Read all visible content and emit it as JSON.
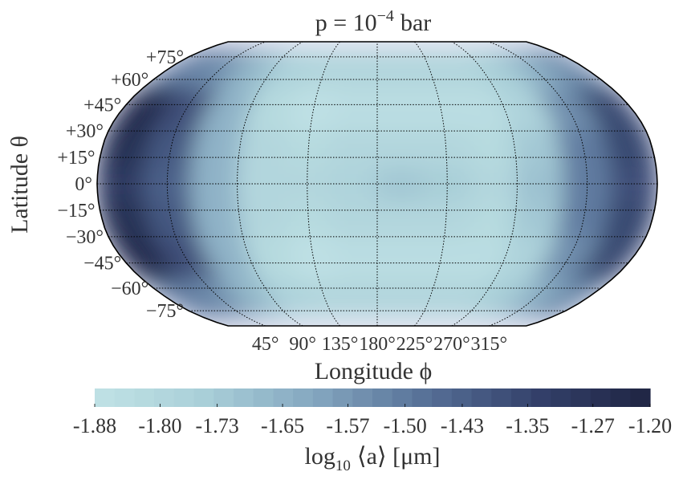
{
  "chart_data": {
    "type": "map",
    "title": {
      "base": "p = 10",
      "exponent": "−4",
      "unit": "bar"
    },
    "y_label": "Latitude θ",
    "x_label": "Longitude ϕ",
    "colorbar_label": {
      "base": "log",
      "sub": "10",
      "rest": "⟨a⟩ [μm]"
    },
    "projection": "robinson",
    "center_lon": 180,
    "xticks": [
      {
        "value": 45,
        "label": "45°"
      },
      {
        "value": 90,
        "label": "90°"
      },
      {
        "value": 135,
        "label": "135°"
      },
      {
        "value": 180,
        "label": "180°"
      },
      {
        "value": 225,
        "label": "225°"
      },
      {
        "value": 270,
        "label": "270°"
      },
      {
        "value": 315,
        "label": "315°"
      }
    ],
    "yticks": [
      {
        "value": 75,
        "label": "+75°"
      },
      {
        "value": 60,
        "label": "+60°"
      },
      {
        "value": 45,
        "label": "+45°"
      },
      {
        "value": 30,
        "label": "+30°"
      },
      {
        "value": 15,
        "label": "+15°"
      },
      {
        "value": 0,
        "label": "0°"
      },
      {
        "value": -15,
        "label": "−15°"
      },
      {
        "value": -30,
        "label": "−30°"
      },
      {
        "value": -45,
        "label": "−45°"
      },
      {
        "value": -60,
        "label": "−60°"
      },
      {
        "value": -75,
        "label": "−75°"
      }
    ],
    "field": {
      "lon_edges": [
        0,
        30,
        60,
        90,
        120,
        150,
        180,
        210,
        240,
        270,
        300,
        330,
        360
      ],
      "lat_edges": [
        -80,
        -55,
        -30,
        -10,
        10,
        30,
        55,
        80
      ],
      "values": [
        [
          -1.5,
          -1.55,
          -1.68,
          -1.76,
          -1.79,
          -1.8,
          -1.8,
          -1.8,
          -1.79,
          -1.74,
          -1.64,
          -1.52
        ],
        [
          -1.24,
          -1.38,
          -1.66,
          -1.82,
          -1.86,
          -1.85,
          -1.84,
          -1.84,
          -1.84,
          -1.76,
          -1.56,
          -1.36
        ],
        [
          -1.26,
          -1.4,
          -1.64,
          -1.8,
          -1.82,
          -1.8,
          -1.8,
          -1.8,
          -1.82,
          -1.72,
          -1.5,
          -1.36
        ],
        [
          -1.3,
          -1.42,
          -1.64,
          -1.8,
          -1.8,
          -1.76,
          -1.72,
          -1.74,
          -1.8,
          -1.7,
          -1.5,
          -1.38
        ],
        [
          -1.26,
          -1.4,
          -1.64,
          -1.8,
          -1.82,
          -1.8,
          -1.8,
          -1.8,
          -1.82,
          -1.72,
          -1.5,
          -1.36
        ],
        [
          -1.24,
          -1.38,
          -1.66,
          -1.82,
          -1.86,
          -1.85,
          -1.84,
          -1.84,
          -1.84,
          -1.76,
          -1.56,
          -1.36
        ],
        [
          -1.5,
          -1.55,
          -1.68,
          -1.76,
          -1.79,
          -1.8,
          -1.8,
          -1.8,
          -1.79,
          -1.74,
          -1.64,
          -1.52
        ]
      ]
    },
    "background_color": "#e7e7f3",
    "colormap": [
      "#c0e2e5",
      "#a9cfd8",
      "#83a6bf",
      "#566f96",
      "#33406a",
      "#1f2442"
    ],
    "colormap_levels": 28,
    "clim": [
      -1.88,
      -1.2
    ],
    "cticks": [
      -1.88,
      {
        "value": -1.8,
        "label": "-1.80"
      },
      -1.73,
      -1.65,
      -1.57,
      {
        "value": -1.5,
        "label": "-1.50"
      },
      -1.43,
      -1.35,
      -1.27,
      {
        "value": -1.2,
        "label": "-1.20"
      }
    ]
  }
}
